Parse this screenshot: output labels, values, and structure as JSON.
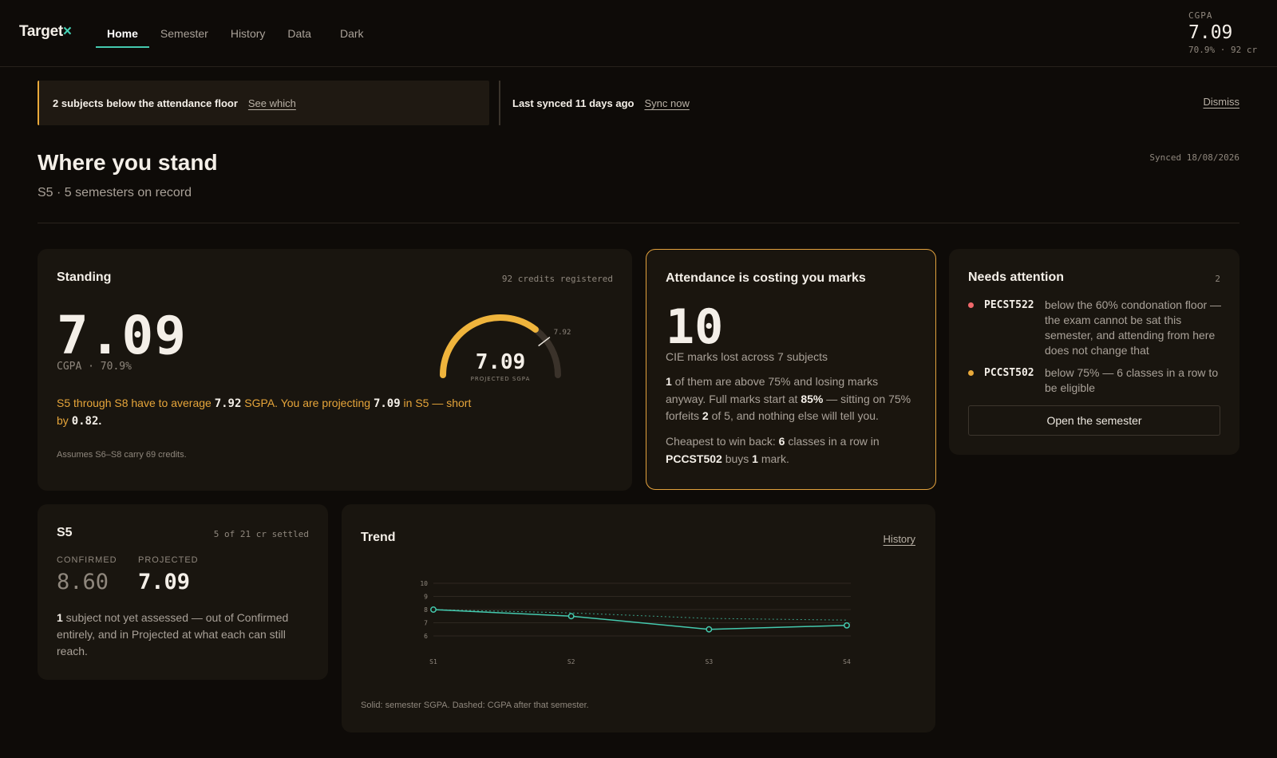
{
  "app": {
    "logo_text": "Target",
    "logo_mark": "×"
  },
  "nav": {
    "items": [
      "Home",
      "Semester",
      "History",
      "Data",
      "Dark"
    ],
    "active": "Home"
  },
  "top_cgpa": {
    "label": "CGPA",
    "value": "7.09",
    "sub": "70.9% · 92 cr"
  },
  "alert": {
    "text": "2 subjects below the attendance floor",
    "link": "See which"
  },
  "sync": {
    "text": "Last synced 11 days ago",
    "link": "Sync now",
    "dismiss": "Dismiss"
  },
  "header": {
    "title": "Where you stand",
    "subtitle": "S5 · 5 semesters on record",
    "synced": "Synced 18/08/2026"
  },
  "standing": {
    "title": "Standing",
    "meta": "92 credits registered",
    "cgpa": "7.09",
    "cgpa_sub": "CGPA · 70.9%",
    "gauge": {
      "value": "7.09",
      "label": "PROJECTED SGPA",
      "target": "7.92",
      "min": 0,
      "max": 10,
      "value_num": 7.09,
      "target_num": 7.92
    },
    "msg_a": "S5 through S8 have to average ",
    "msg_b": "7.92",
    "msg_c": " SGPA. You are projecting ",
    "msg_d": "7.09",
    "msg_e": " in S5 — short by ",
    "msg_f": "0.82",
    "msg_g": ".",
    "assumption": "Assumes S6–S8 carry 69 credits."
  },
  "attendance": {
    "title": "Attendance is costing you marks",
    "big": "10",
    "lost": "CIE marks lost across 7 subjects",
    "p1_a": "1",
    "p1_b": " of them are above 75% and losing marks anyway. Full marks start at ",
    "p1_c": "85%",
    "p1_d": " — sitting on 75% forfeits ",
    "p1_e": "2",
    "p1_f": " of 5, and nothing else will tell you.",
    "p2_a": "Cheapest to win back: ",
    "p2_b": "6",
    "p2_c": " classes in a row in ",
    "p2_d": "PCCST502",
    "p2_e": " buys ",
    "p2_f": "1",
    "p2_g": " mark."
  },
  "needs": {
    "title": "Needs attention",
    "count": "2",
    "items": [
      {
        "code": "PECST522",
        "text": "below the 60% condonation floor — the exam cannot be sat this semester, and attending from here does not change that",
        "color": "#f0686a"
      },
      {
        "code": "PCCST502",
        "text": "below 75% — 6 classes in a row to be eligible",
        "color": "#e9a93a"
      }
    ],
    "button": "Open the semester"
  },
  "s5": {
    "title": "S5",
    "meta": "5 of 21 cr settled",
    "confirmed_label": "CONFIRMED",
    "confirmed": "8.60",
    "projected_label": "PROJECTED",
    "projected": "7.09",
    "msg_a": "1",
    "msg_b": " subject not yet assessed — out of Confirmed entirely, and in Projected at what each can still reach."
  },
  "trend": {
    "title": "Trend",
    "link": "History",
    "footnote": "Solid: semester SGPA. Dashed: CGPA after that semester."
  },
  "colors": {
    "accent": "#44c9ae",
    "warning": "#e9a93a",
    "danger": "#f0686a"
  },
  "chart_data": {
    "type": "line",
    "x": [
      "S1",
      "S2",
      "S3",
      "S4"
    ],
    "ylim": [
      6,
      10
    ],
    "yticks": [
      6,
      7,
      8,
      9,
      10
    ],
    "grid": true,
    "series": [
      {
        "style": "solid",
        "values": [
          8.0,
          7.5,
          6.5,
          6.8
        ]
      },
      {
        "style": "dashed",
        "values": [
          8.0,
          7.75,
          7.33,
          7.2
        ]
      }
    ]
  }
}
